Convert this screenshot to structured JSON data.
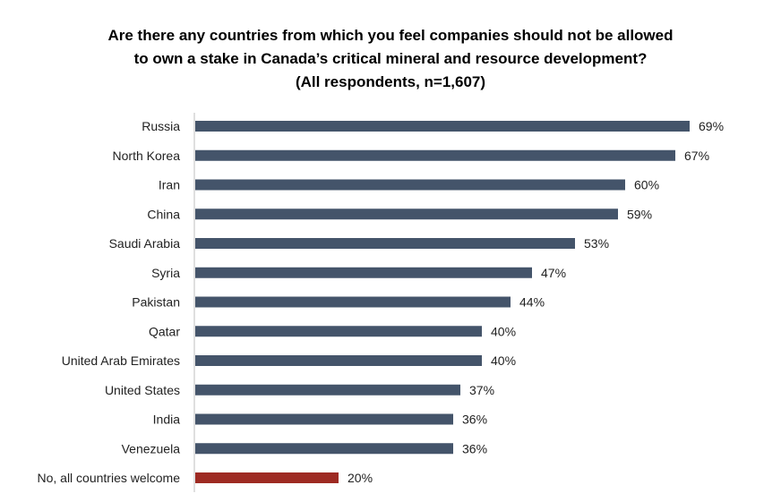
{
  "chart_data": {
    "type": "bar",
    "orientation": "horizontal",
    "title_lines": [
      "Are there any countries from which you feel companies should not be allowed",
      "to own a stake in Canada’s critical mineral and resource development?",
      "(All respondents, n=1,607)"
    ],
    "categories": [
      "Russia",
      "North Korea",
      "Iran",
      "China",
      "Saudi Arabia",
      "Syria",
      "Pakistan",
      "Qatar",
      "United Arab Emirates",
      "United States",
      "India",
      "Venezuela",
      "No, all countries welcome"
    ],
    "values": [
      69,
      67,
      60,
      59,
      53,
      47,
      44,
      40,
      40,
      37,
      36,
      36,
      20
    ],
    "value_labels": [
      "69%",
      "67%",
      "60%",
      "59%",
      "53%",
      "47%",
      "44%",
      "40%",
      "40%",
      "37%",
      "36%",
      "36%",
      "20%"
    ],
    "xlim": [
      0,
      70
    ],
    "grid": false,
    "legend": "none",
    "colors": {
      "default_bar": "#44546A",
      "highlight_bar": "#9E2A22",
      "axis": "#BFBFBF"
    },
    "highlight_categories": [
      "No, all countries welcome"
    ]
  }
}
